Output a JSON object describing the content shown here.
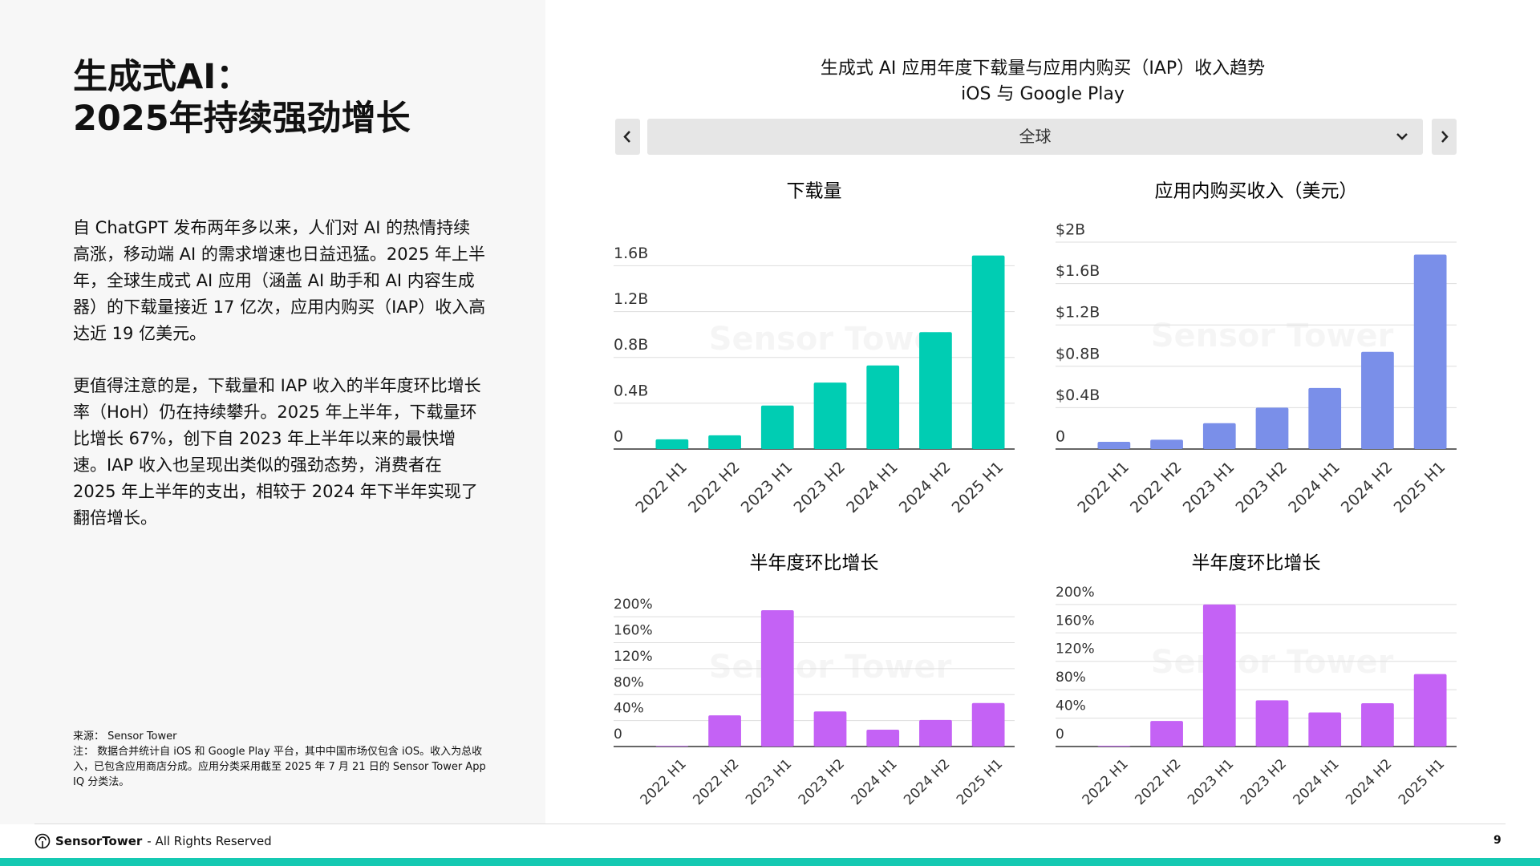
{
  "page": {
    "title_line1": "生成式AI：",
    "title_line2": "2025年持续强劲增长",
    "paragraph1": "自 ChatGPT 发布两年多以来，人们对 AI 的热情持续高涨，移动端 AI 的需求增速也日益迅猛。2025 年上半年，全球生成式 AI 应用（涵盖 AI 助手和 AI 内容生成器）的下载量接近 17 亿次，应用内购买（IAP）收入高达近 19 亿美元。",
    "paragraph2": "更值得注意的是，下载量和 IAP 收入的半年度环比增长率（HoH）仍在持续攀升。2025 年上半年，下载量环比增长 67%，创下自 2023 年上半年以来的最快增速。IAP 收入也呈现出类似的强劲态势，消费者在 2025 年上半年的支出，相较于 2024 年下半年实现了翻倍增长。",
    "source": "来源： Sensor Tower",
    "note": "注： 数据合并统计自 iOS 和 Google Play 平台，其中中国市场仅包含 iOS。收入为总收入，已包含应用商店分成。应用分类采用截至 2025 年 7 月 21 日的 Sensor Tower App IQ 分类法。",
    "figure_title": "生成式 AI 应用年度下载量与应用内购买（IAP）收入趋势",
    "figure_subtitle": "iOS 与 Google Play",
    "region": "全球",
    "watermark": "Sensor Tower",
    "footer_brand": "SensorTower",
    "footer_rights": "- All Rights Reserved",
    "page_number": "9"
  },
  "chart_data": [
    {
      "type": "bar",
      "title": "下载量",
      "categories": [
        "2022 H1",
        "2022 H2",
        "2023 H1",
        "2023 H2",
        "2024 H1",
        "2024 H2",
        "2025 H1"
      ],
      "values": [
        0.085,
        0.12,
        0.38,
        0.58,
        0.73,
        1.02,
        1.69
      ],
      "color": "#00cdb3",
      "ylim": [
        0,
        1.75
      ],
      "yticks": [
        0,
        {
          "value": 0.4,
          "label": "0.4B"
        },
        {
          "value": 0.8,
          "label": "0.8B"
        },
        {
          "value": 1.2,
          "label": "1.2B"
        },
        {
          "value": 1.6,
          "label": "1.6B"
        }
      ],
      "grid": true
    },
    {
      "type": "bar",
      "title": "应用内购买收入（美元）",
      "categories": [
        "2022 H1",
        "2022 H2",
        "2023 H1",
        "2023 H2",
        "2024 H1",
        "2024 H2",
        "2025 H1"
      ],
      "values": [
        0.07,
        0.09,
        0.25,
        0.4,
        0.59,
        0.94,
        1.88
      ],
      "color": "#7a8fe9",
      "ylim": [
        0,
        2
      ],
      "yticks": [
        0,
        {
          "value": 0.4,
          "label": "$0.4B"
        },
        {
          "value": 0.8,
          "label": "$0.8B"
        },
        {
          "value": 1.2,
          "label": "$1.2B"
        },
        {
          "value": 1.6,
          "label": "$1.6B"
        },
        {
          "value": 2,
          "label": "$2B"
        }
      ],
      "grid": true
    },
    {
      "type": "bar",
      "title": "半年度环比增长",
      "categories": [
        "2022 H1",
        "2022 H2",
        "2023 H1",
        "2023 H2",
        "2024 H1",
        "2024 H2",
        "2025 H1"
      ],
      "values": [
        1,
        48,
        210,
        54,
        26,
        41,
        67
      ],
      "color": "#c462f5",
      "ylim": [
        0,
        215
      ],
      "yticks": [
        0,
        {
          "value": 40,
          "label": "40%"
        },
        {
          "value": 80,
          "label": "80%"
        },
        {
          "value": 120,
          "label": "120%"
        },
        {
          "value": 160,
          "label": "160%"
        },
        {
          "value": 200,
          "label": "200%"
        }
      ],
      "grid": true
    },
    {
      "type": "bar",
      "title": "半年度环比增长",
      "categories": [
        "2022 H1",
        "2022 H2",
        "2023 H1",
        "2023 H2",
        "2024 H1",
        "2024 H2",
        "2025 H1"
      ],
      "values": [
        1,
        36,
        200,
        65,
        48,
        61,
        102
      ],
      "color": "#c462f5",
      "ylim": [
        0,
        210
      ],
      "yticks": [
        0,
        {
          "value": 40,
          "label": "40%"
        },
        {
          "value": 80,
          "label": "80%"
        },
        {
          "value": 120,
          "label": "120%"
        },
        {
          "value": 160,
          "label": "160%"
        },
        {
          "value": 200,
          "label": "200%"
        }
      ],
      "grid": true
    }
  ]
}
